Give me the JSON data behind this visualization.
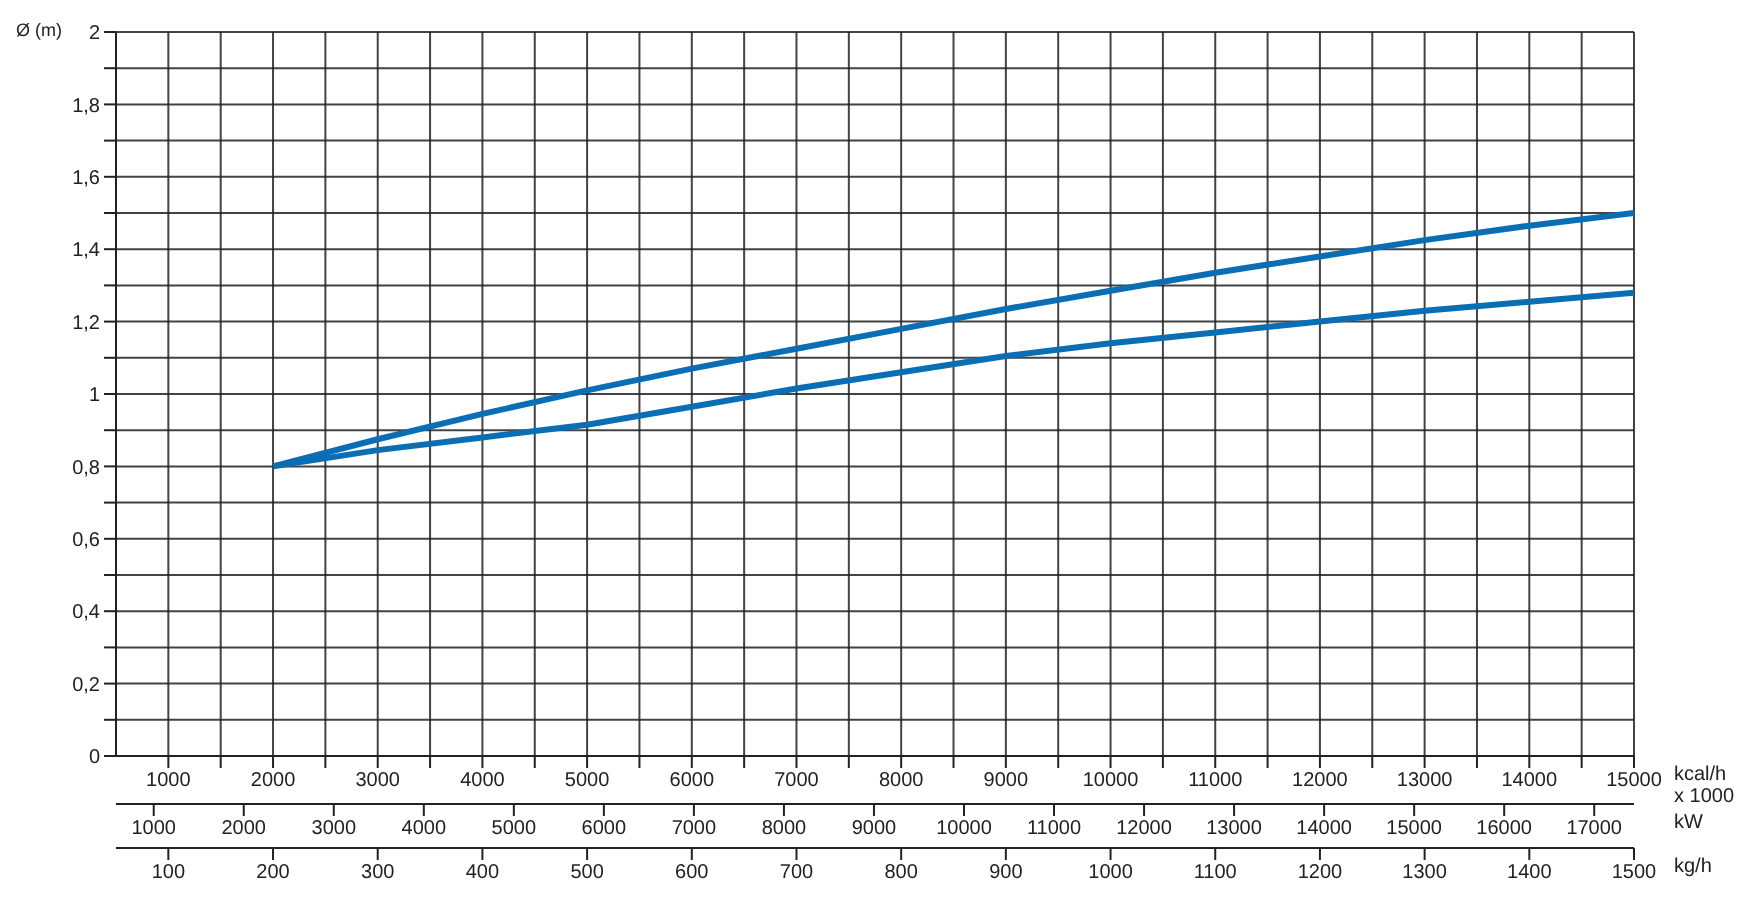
{
  "chart_data": {
    "type": "line",
    "ylabel": "Ø (m)",
    "xlabel": "kcal/h x 1000",
    "x2label": "kW",
    "annotations": [
      "kg/h",
      "100",
      "200",
      "300",
      "400",
      "500",
      "600",
      "700",
      "800",
      "900",
      "1000",
      "1100",
      "1200",
      "1300",
      "1400",
      "1500"
    ],
    "x": [
      2000,
      3000,
      4000,
      5000,
      6000,
      7000,
      8000,
      9000,
      10000,
      11000,
      12000,
      13000,
      14000,
      15000
    ],
    "series": [
      {
        "color": "#0a6eb4",
        "values": [
          0.8,
          0.875,
          0.945,
          1.01,
          1.07,
          1.125,
          1.18,
          1.235,
          1.285,
          1.335,
          1.38,
          1.425,
          1.465,
          1.5
        ]
      },
      {
        "color": "#0a6eb4",
        "values": [
          0.8,
          0.845,
          0.88,
          0.915,
          0.965,
          1.015,
          1.06,
          1.105,
          1.14,
          1.17,
          1.2,
          1.23,
          1.255,
          1.28
        ]
      }
    ],
    "xlim": [
      500,
      15000
    ],
    "xticks": [
      1000,
      {
        "value": 1500,
        "label": null
      },
      2000,
      {
        "value": 2500,
        "label": null
      },
      3000,
      {
        "value": 3500,
        "label": null
      },
      4000,
      {
        "value": 4500,
        "label": null
      },
      5000,
      {
        "value": 5500,
        "label": null
      },
      6000,
      {
        "value": 6500,
        "label": null
      },
      7000,
      {
        "value": 7500,
        "label": null
      },
      8000,
      {
        "value": 8500,
        "label": null
      },
      9000,
      {
        "value": 9500,
        "label": null
      },
      10000,
      {
        "value": 10500,
        "label": null
      },
      11000,
      {
        "value": 11500,
        "label": null
      },
      12000,
      {
        "value": 12500,
        "label": null
      },
      13000,
      {
        "value": 13500,
        "label": null
      },
      14000,
      {
        "value": 14500,
        "label": null
      },
      15000
    ],
    "x2lim": [
      581,
      17442
    ],
    "x2ticks": [
      1000,
      2000,
      3000,
      4000,
      5000,
      6000,
      7000,
      8000,
      9000,
      10000,
      11000,
      12000,
      13000,
      14000,
      15000,
      16000,
      17000
    ],
    "ylim": [
      0,
      2
    ],
    "yticks": [
      0,
      {
        "value": 0.1,
        "label": null
      },
      {
        "value": 0.2,
        "label": "0,2"
      },
      {
        "value": 0.3,
        "label": null
      },
      {
        "value": 0.4,
        "label": "0,4"
      },
      {
        "value": 0.5,
        "label": null
      },
      {
        "value": 0.6,
        "label": "0,6"
      },
      {
        "value": 0.7,
        "label": null
      },
      {
        "value": 0.8,
        "label": "0,8"
      },
      {
        "value": 0.9,
        "label": null
      },
      1,
      {
        "value": 1.1,
        "label": null
      },
      {
        "value": 1.2,
        "label": "1,2"
      },
      {
        "value": 1.3,
        "label": null
      },
      {
        "value": 1.4,
        "label": "1,4"
      },
      {
        "value": 1.5,
        "label": null
      },
      {
        "value": 1.6,
        "label": "1,6"
      },
      {
        "value": 1.7,
        "label": null
      },
      {
        "value": 1.8,
        "label": "1,8"
      },
      {
        "value": 1.9,
        "label": null
      },
      2
    ],
    "grid": true,
    "line_style": "solid",
    "marker": "none"
  }
}
